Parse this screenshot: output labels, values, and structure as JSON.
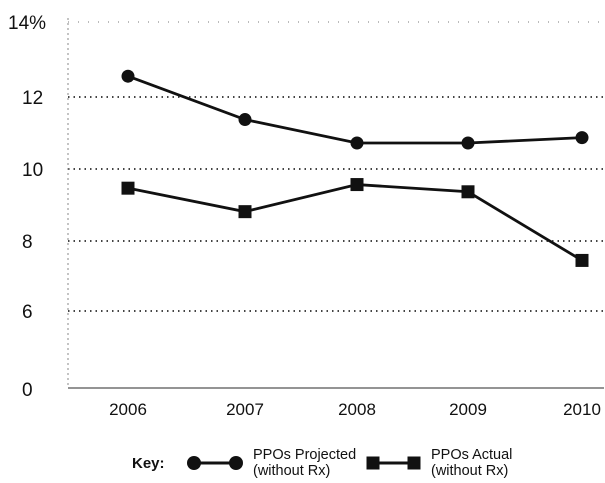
{
  "chart_data": {
    "type": "line",
    "title": "",
    "xlabel": "",
    "ylabel": "",
    "y_ticks": [
      "14%",
      "12",
      "10",
      "8",
      "6",
      "0"
    ],
    "categories": [
      "2006",
      "2007",
      "2008",
      "2009",
      "2010"
    ],
    "series": [
      {
        "name": "PPOs Projected (without Rx)",
        "name_lines": [
          "PPOs Projected",
          "(without Rx)"
        ],
        "marker": "circle",
        "values": [
          12.5,
          11.3,
          10.65,
          10.65,
          10.8
        ]
      },
      {
        "name": "PPOs Actual (without Rx)",
        "name_lines": [
          "PPOs Actual",
          "(without Rx)"
        ],
        "marker": "square",
        "values": [
          9.4,
          8.75,
          9.5,
          9.3,
          7.4
        ]
      }
    ],
    "legend": {
      "title": "Key:",
      "position": "bottom"
    },
    "grid": true
  }
}
